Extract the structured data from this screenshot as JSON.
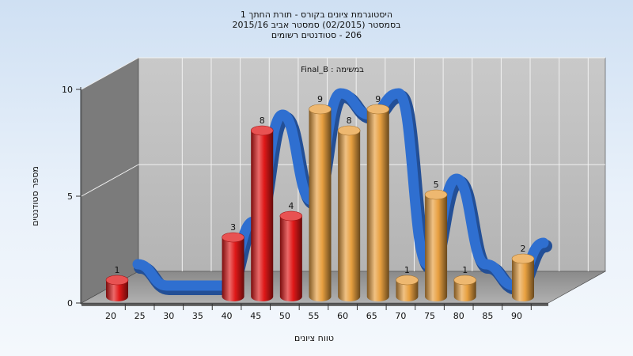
{
  "chart_data": {
    "type": "bar",
    "title_lines": [
      "היסטוגרמת ציונים בקורס - תורת החתך 1",
      "בסמסטר  (02/2015)  סמסטר אביב 2015/16",
      "206 - סטודנטים רשומים"
    ],
    "subtitle": "Final_B : במשימה",
    "xlabel": "טווח ציונים",
    "ylabel": "מספר סטודנטים",
    "ylim": [
      0,
      10
    ],
    "yticks": [
      0,
      5,
      10
    ],
    "categories": [
      "20",
      "25",
      "30",
      "35",
      "40",
      "45",
      "50",
      "55",
      "60",
      "65",
      "70",
      "75",
      "80",
      "85",
      "90"
    ],
    "values": [
      1,
      0,
      0,
      0,
      3,
      8,
      4,
      9,
      8,
      9,
      1,
      5,
      1,
      0,
      2
    ],
    "bar_colors": [
      "#e01818",
      "#e01818",
      "#e01818",
      "#e01818",
      "#e01818",
      "#e01818",
      "#e01818",
      "#e8a040",
      "#e8a040",
      "#e8a040",
      "#e8a040",
      "#e8a040",
      "#e8a040",
      "#e8a040",
      "#e8a040"
    ],
    "curve_color": "#2f6fd0",
    "grid": true
  }
}
